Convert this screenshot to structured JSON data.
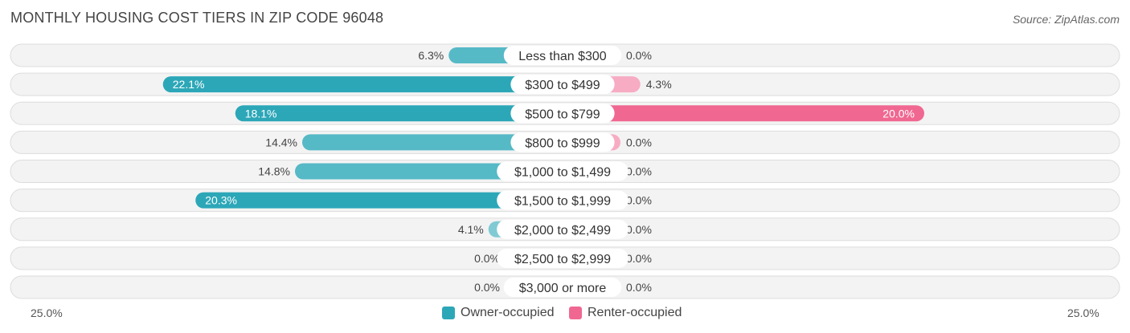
{
  "chart_data": {
    "type": "bar",
    "orientation": "horizontal-diverging",
    "title": "MONTHLY HOUSING COST TIERS IN ZIP CODE 96048",
    "source": "Source: ZipAtlas.com",
    "categories": [
      "Less than $300",
      "$300 to $499",
      "$500 to $799",
      "$800 to $999",
      "$1,000 to $1,499",
      "$1,500 to $1,999",
      "$2,000 to $2,499",
      "$2,500 to $2,999",
      "$3,000 or more"
    ],
    "series": [
      {
        "name": "Owner-occupied",
        "color": "#2ca7b8",
        "values": [
          6.3,
          22.1,
          18.1,
          14.4,
          14.8,
          20.3,
          4.1,
          0.0,
          0.0
        ],
        "labels": [
          "6.3%",
          "22.1%",
          "18.1%",
          "14.4%",
          "14.8%",
          "20.3%",
          "4.1%",
          "0.0%",
          "0.0%"
        ]
      },
      {
        "name": "Renter-occupied",
        "color": "#f06892",
        "values": [
          0.0,
          4.3,
          20.0,
          0.0,
          0.0,
          0.0,
          0.0,
          0.0,
          0.0
        ],
        "labels": [
          "0.0%",
          "4.3%",
          "20.0%",
          "0.0%",
          "0.0%",
          "0.0%",
          "0.0%",
          "0.0%",
          "0.0%"
        ]
      }
    ],
    "axis_max": 25.0,
    "axis_left_label": "25.0%",
    "axis_right_label": "25.0%",
    "legend_position": "bottom-center"
  }
}
